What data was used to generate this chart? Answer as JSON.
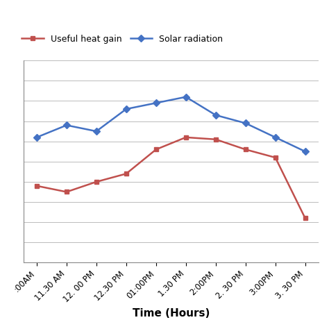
{
  "time_labels": [
    ":00AM",
    "11.30 AM",
    "12. 00 PM",
    "12.30 PM",
    "01:00PM",
    "1.30 PM",
    "2:00PM",
    "2. 30 PM",
    "3:00PM",
    "3. 30 PM"
  ],
  "solar_radiation": [
    62,
    68,
    65,
    76,
    79,
    82,
    73,
    69,
    62,
    55
  ],
  "useful_heat_gain": [
    38,
    35,
    40,
    44,
    56,
    62,
    61,
    56,
    52,
    22
  ],
  "solar_color": "#4472C4",
  "heat_color": "#C0504D",
  "xlabel": "Time (Hours)",
  "legend_heat": "Useful heat gain",
  "legend_solar": "Solar radiation",
  "ylim_min": 0,
  "ylim_max": 100,
  "yticks": [
    0,
    10,
    20,
    30,
    40,
    50,
    60,
    70,
    80,
    90,
    100
  ],
  "bg_color": "#FFFFFF",
  "grid_color": "#BBBBBB"
}
